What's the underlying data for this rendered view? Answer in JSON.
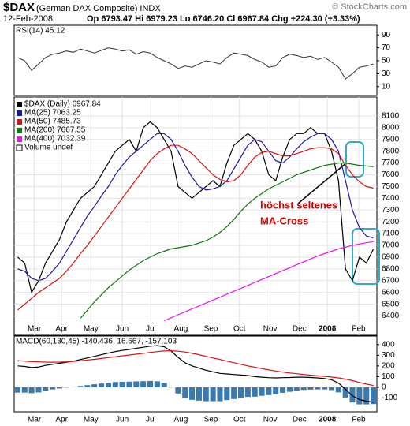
{
  "header": {
    "symbol": "$DAX",
    "name": "(German DAX Composite) INDX",
    "date": "12-Feb-2008",
    "quote": "Op 6793.47 Hi 6979.23 Lo 6746.20 Cl 6967.84 Chg +224.30 (+3.33%)",
    "credit": "© StockCharts.com"
  },
  "chart_data": [
    {
      "type": "line",
      "title": "RSI(14) 45.12",
      "color": "#333333",
      "x": [
        0,
        1,
        2,
        3,
        4,
        5,
        6,
        7,
        8,
        9,
        10,
        11,
        12,
        13,
        14,
        15,
        16,
        17,
        18,
        19,
        20,
        21,
        22,
        23,
        24,
        25,
        26,
        27,
        28,
        29,
        30,
        31,
        32,
        33,
        34,
        35,
        36,
        37,
        38,
        39,
        40,
        41,
        42,
        43,
        44,
        45,
        46,
        47,
        48,
        49,
        50,
        51
      ],
      "values": [
        55,
        50,
        35,
        45,
        55,
        60,
        62,
        65,
        63,
        68,
        65,
        62,
        66,
        70,
        68,
        65,
        67,
        60,
        64,
        62,
        55,
        50,
        45,
        38,
        42,
        40,
        45,
        50,
        48,
        45,
        55,
        62,
        60,
        58,
        52,
        48,
        40,
        42,
        55,
        60,
        58,
        55,
        57,
        52,
        55,
        48,
        40,
        22,
        30,
        40,
        42,
        45
      ],
      "xlim": [
        -0.5,
        51.5
      ],
      "ylim": [
        0,
        100
      ],
      "yticks": [
        10,
        30,
        50,
        70,
        90
      ]
    },
    {
      "type": "line",
      "grid": true,
      "x": [
        0,
        1,
        2,
        3,
        4,
        5,
        6,
        7,
        8,
        9,
        10,
        11,
        12,
        13,
        14,
        15,
        16,
        17,
        18,
        19,
        20,
        21,
        22,
        23,
        24,
        25,
        26,
        27,
        28,
        29,
        30,
        31,
        32,
        33,
        34,
        35,
        36,
        37,
        38,
        39,
        40,
        41,
        42,
        43,
        44,
        45,
        46,
        47,
        48,
        49,
        50,
        51
      ],
      "series": [
        {
          "name": "$DAX (Daily) 6967.84",
          "color": "#000000",
          "values": [
            6900,
            6850,
            6600,
            6700,
            6850,
            6950,
            7050,
            7200,
            7300,
            7400,
            7450,
            7500,
            7600,
            7700,
            7800,
            7850,
            7900,
            7800,
            8000,
            8050,
            8000,
            7900,
            7800,
            7500,
            7450,
            7400,
            7450,
            7500,
            7550,
            7500,
            7700,
            7850,
            7900,
            7950,
            7900,
            7800,
            7600,
            7550,
            7750,
            7900,
            7950,
            7950,
            8000,
            7950,
            7950,
            7800,
            7550,
            6800,
            6700,
            6900,
            6850,
            6968
          ]
        },
        {
          "name": "MA(25) 7063.25",
          "color": "#1a1aa0",
          "values": [
            6800,
            6780,
            6720,
            6700,
            6720,
            6780,
            6850,
            6950,
            7050,
            7150,
            7250,
            7330,
            7420,
            7500,
            7600,
            7680,
            7750,
            7800,
            7850,
            7900,
            7950,
            7950,
            7900,
            7800,
            7680,
            7580,
            7500,
            7470,
            7480,
            7500,
            7550,
            7650,
            7750,
            7850,
            7900,
            7880,
            7800,
            7720,
            7700,
            7750,
            7820,
            7880,
            7920,
            7950,
            7950,
            7900,
            7800,
            7550,
            7300,
            7150,
            7080,
            7063
          ]
        },
        {
          "name": "MA(50) 7485.73",
          "color": "#dd1111",
          "values": [
            6450,
            6500,
            6550,
            6600,
            6640,
            6680,
            6720,
            6780,
            6850,
            6930,
            7000,
            7080,
            7160,
            7240,
            7320,
            7400,
            7480,
            7560,
            7640,
            7720,
            7780,
            7820,
            7850,
            7850,
            7820,
            7780,
            7720,
            7660,
            7600,
            7560,
            7540,
            7550,
            7600,
            7680,
            7750,
            7790,
            7800,
            7780,
            7760,
            7760,
            7780,
            7800,
            7820,
            7830,
            7830,
            7820,
            7780,
            7680,
            7600,
            7540,
            7500,
            7486
          ]
        },
        {
          "name": "MA(200) 7667.55",
          "color": "#117711",
          "values": [
            null,
            null,
            null,
            null,
            null,
            null,
            null,
            null,
            null,
            6380,
            6450,
            6520,
            6580,
            6640,
            6690,
            6740,
            6790,
            6830,
            6870,
            6900,
            6930,
            6950,
            6970,
            6980,
            6990,
            7000,
            7020,
            7040,
            7070,
            7110,
            7160,
            7220,
            7290,
            7350,
            7400,
            7440,
            7480,
            7510,
            7540,
            7570,
            7600,
            7620,
            7640,
            7660,
            7680,
            7690,
            7700,
            7700,
            7690,
            7680,
            7675,
            7668
          ]
        },
        {
          "name": "MA(400) 7032.39",
          "color": "#ee11ee",
          "values": [
            null,
            null,
            null,
            null,
            null,
            null,
            null,
            null,
            null,
            null,
            null,
            null,
            null,
            null,
            null,
            null,
            null,
            null,
            null,
            null,
            null,
            6360,
            6385,
            6410,
            6435,
            6460,
            6485,
            6510,
            6535,
            6560,
            6585,
            6610,
            6635,
            6660,
            6685,
            6710,
            6735,
            6760,
            6785,
            6810,
            6835,
            6860,
            6885,
            6910,
            6930,
            6950,
            6970,
            6985,
            7000,
            7012,
            7022,
            7032
          ]
        }
      ],
      "volume_label": "Volume undef",
      "annotations": [
        "höchst seltenes",
        "MA-Cross"
      ],
      "xlim": [
        -0.5,
        51.5
      ],
      "xticks": [
        {
          "value": 2.4,
          "label": "Mar"
        },
        {
          "value": 6.3,
          "label": "Apr"
        },
        {
          "value": 10.5,
          "label": "May"
        },
        {
          "value": 15,
          "label": "Jun"
        },
        {
          "value": 19.1,
          "label": "Jul"
        },
        {
          "value": 23.4,
          "label": "Aug"
        },
        {
          "value": 27.7,
          "label": "Sep"
        },
        {
          "value": 31.8,
          "label": "Oct"
        },
        {
          "value": 36.2,
          "label": "Nov"
        },
        {
          "value": 40.4,
          "label": "Dec"
        },
        {
          "value": 44.4,
          "label": "2008"
        },
        {
          "value": 48.9,
          "label": "Feb"
        }
      ],
      "ylim": [
        6350,
        8200
      ],
      "yticks": [
        6400,
        6500,
        6600,
        6700,
        6800,
        6900,
        7000,
        7100,
        7200,
        7300,
        7400,
        7500,
        7600,
        7700,
        7800,
        7900,
        8000,
        8100
      ]
    },
    {
      "type": "line",
      "title": "MACD(60,130,45) -140.436, 16.667, -157.103",
      "x": [
        0,
        1,
        2,
        3,
        4,
        5,
        6,
        7,
        8,
        9,
        10,
        11,
        12,
        13,
        14,
        15,
        16,
        17,
        18,
        19,
        20,
        21,
        22,
        23,
        24,
        25,
        26,
        27,
        28,
        29,
        30,
        31,
        32,
        33,
        34,
        35,
        36,
        37,
        38,
        39,
        40,
        41,
        42,
        43,
        44,
        45,
        46,
        47,
        48,
        49,
        50,
        51
      ],
      "series": [
        {
          "color": "#000000",
          "values": [
            200,
            195,
            185,
            190,
            205,
            215,
            225,
            235,
            245,
            260,
            275,
            290,
            305,
            320,
            335,
            345,
            355,
            365,
            375,
            385,
            390,
            380,
            340,
            280,
            230,
            200,
            180,
            160,
            145,
            130,
            125,
            120,
            115,
            110,
            100,
            95,
            90,
            88,
            90,
            92,
            95,
            95,
            92,
            88,
            82,
            70,
            40,
            -20,
            -80,
            -115,
            -130,
            -140
          ]
        },
        {
          "color": "#dd1111",
          "values": [
            250,
            245,
            240,
            238,
            236,
            235,
            236,
            238,
            242,
            248,
            255,
            262,
            270,
            278,
            286,
            294,
            302,
            310,
            318,
            326,
            334,
            340,
            342,
            338,
            330,
            318,
            305,
            290,
            275,
            260,
            245,
            230,
            215,
            200,
            188,
            175,
            163,
            152,
            142,
            134,
            127,
            120,
            114,
            108,
            102,
            96,
            88,
            76,
            62,
            45,
            30,
            17
          ]
        }
      ],
      "histogram": {
        "color": "#3a78b0",
        "values": [
          -50,
          -50,
          -55,
          -48,
          -31,
          -20,
          -11,
          -3,
          3,
          12,
          20,
          28,
          35,
          42,
          49,
          51,
          53,
          55,
          57,
          59,
          56,
          40,
          -2,
          -58,
          -100,
          -118,
          -125,
          -130,
          -130,
          -130,
          -120,
          -110,
          -100,
          -90,
          -88,
          -80,
          -73,
          -64,
          -52,
          -42,
          -32,
          -25,
          -22,
          -20,
          -20,
          -26,
          -48,
          -96,
          -142,
          -160,
          -160,
          -157
        ]
      },
      "xlim": [
        -0.5,
        51.5
      ],
      "xticks": [
        {
          "value": 2.4,
          "label": "Mar"
        },
        {
          "value": 6.3,
          "label": "Apr"
        },
        {
          "value": 10.5,
          "label": "May"
        },
        {
          "value": 15,
          "label": "Jun"
        },
        {
          "value": 19.1,
          "label": "Jul"
        },
        {
          "value": 23.4,
          "label": "Aug"
        },
        {
          "value": 27.7,
          "label": "Sep"
        },
        {
          "value": 31.8,
          "label": "Oct"
        },
        {
          "value": 36.2,
          "label": "Nov"
        },
        {
          "value": 40.4,
          "label": "Dec"
        },
        {
          "value": 44.4,
          "label": "2008"
        },
        {
          "value": 48.9,
          "label": "Feb"
        }
      ],
      "ylim": [
        -200,
        450
      ],
      "yticks": [
        -100,
        0,
        100,
        200,
        300,
        400
      ]
    }
  ]
}
